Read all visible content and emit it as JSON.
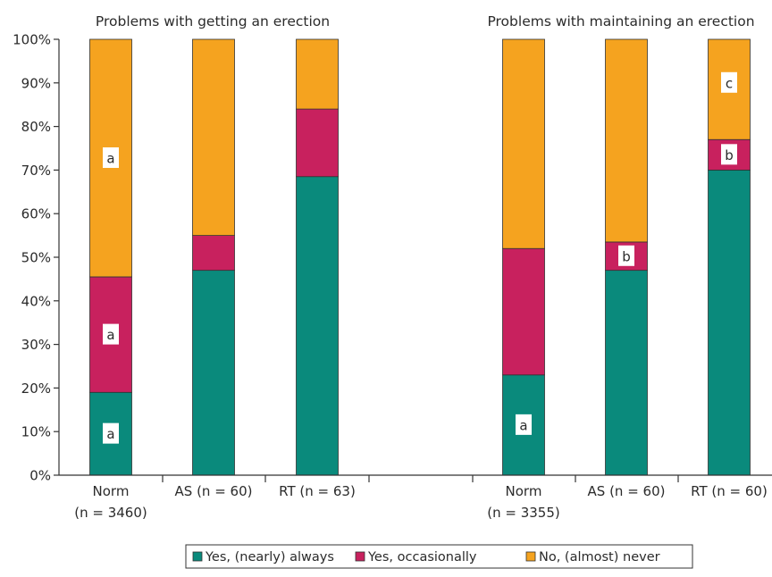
{
  "chart_data": {
    "type": "bar",
    "stacked": true,
    "ylim": [
      0,
      100
    ],
    "yticks": [
      "0%",
      "10%",
      "20%",
      "30%",
      "40%",
      "50%",
      "60%",
      "70%",
      "80%",
      "90%",
      "100%"
    ],
    "grid": false,
    "legend_position": "bottom",
    "panels": [
      {
        "title": "Problems with getting an erection",
        "categories": [
          {
            "label": "Norm",
            "sublabel": "(n = 3460)"
          },
          {
            "label": "AS (n = 60)",
            "sublabel": ""
          },
          {
            "label": "RT (n = 63)",
            "sublabel": ""
          }
        ]
      },
      {
        "title": "Problems with maintaining an erection",
        "categories": [
          {
            "label": "Norm",
            "sublabel": "(n = 3355)"
          },
          {
            "label": "AS (n = 60)",
            "sublabel": ""
          },
          {
            "label": "RT (n = 60)",
            "sublabel": ""
          }
        ]
      }
    ],
    "series": [
      {
        "name": "Yes, (nearly) always",
        "color": "#0a8a7c",
        "values": [
          19,
          47,
          68.5,
          23,
          47,
          70
        ],
        "annotations": [
          "a",
          "",
          "",
          "a",
          "",
          ""
        ]
      },
      {
        "name": "Yes, occasionally",
        "color": "#c8215e",
        "values": [
          26.5,
          8,
          15.5,
          29,
          6.5,
          7
        ],
        "annotations": [
          "a",
          "",
          "",
          "",
          "b",
          "b"
        ]
      },
      {
        "name": "No, (almost) never",
        "color": "#f5a31f",
        "values": [
          54.5,
          45,
          16,
          48,
          46.5,
          23
        ],
        "annotations": [
          "a",
          "",
          "",
          "",
          "",
          "c"
        ]
      }
    ]
  }
}
